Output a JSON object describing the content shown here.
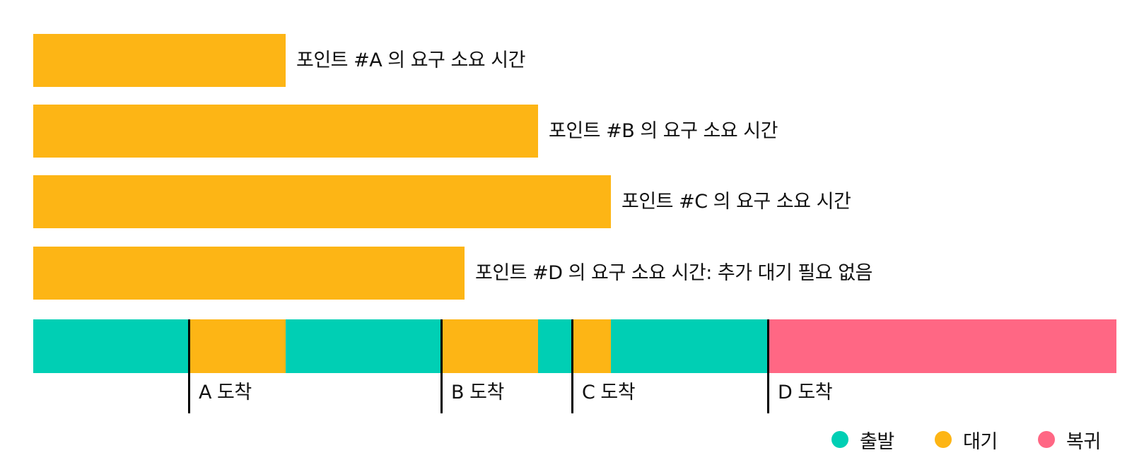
{
  "colors": {
    "depart": "#00CFB4",
    "wait": "#FDB515",
    "return": "#FF6784",
    "marker": "#000000"
  },
  "requirement_bars": [
    {
      "label": "포인트 #A 의 요구 소요 시간",
      "duration": 357
    },
    {
      "label": "포인트 #B 의 요구 소요 시간",
      "duration": 714
    },
    {
      "label": "포인트 #C 의 요구 소요 시간",
      "duration": 817
    },
    {
      "label": "포인트 #D 의 요구 소요 시간: 추가 대기 필요 없음",
      "duration": 610
    }
  ],
  "timeline": {
    "total": 1532,
    "segments": [
      {
        "type": "depart",
        "start": 0,
        "end": 220
      },
      {
        "type": "wait",
        "start": 220,
        "end": 357
      },
      {
        "type": "depart",
        "start": 357,
        "end": 577
      },
      {
        "type": "wait",
        "start": 577,
        "end": 714
      },
      {
        "type": "depart",
        "start": 714,
        "end": 762
      },
      {
        "type": "wait",
        "start": 762,
        "end": 817
      },
      {
        "type": "depart",
        "start": 817,
        "end": 1039
      },
      {
        "type": "return",
        "start": 1039,
        "end": 1532
      }
    ],
    "markers": [
      {
        "label": "A 도착",
        "at": 220
      },
      {
        "label": "B 도착",
        "at": 577
      },
      {
        "label": "C 도착",
        "at": 762
      },
      {
        "label": "D 도착",
        "at": 1039
      }
    ]
  },
  "legend": [
    {
      "key": "depart",
      "label": "출발"
    },
    {
      "key": "wait",
      "label": "대기"
    },
    {
      "key": "return",
      "label": "복귀"
    }
  ]
}
